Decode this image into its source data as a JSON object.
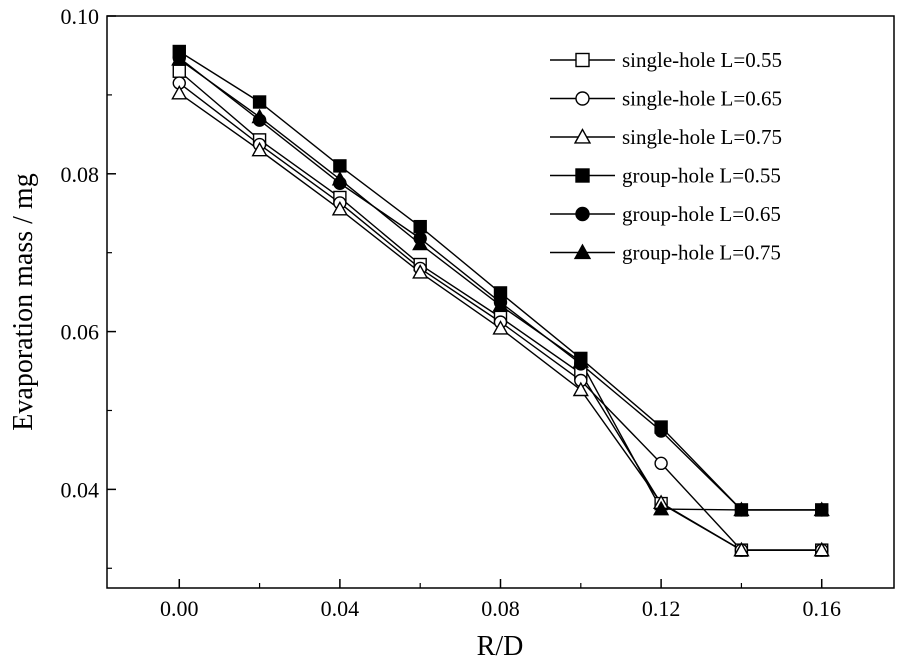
{
  "chart_data": {
    "type": "line",
    "title": "",
    "xlabel": "R/D",
    "ylabel": "Evaporation mass / mg",
    "xlim": [
      -0.018,
      0.178
    ],
    "ylim": [
      0.0275,
      0.1
    ],
    "x_ticks": [
      "0.00",
      "0.04",
      "0.08",
      "0.12",
      "0.16"
    ],
    "y_ticks": [
      "0.04",
      "0.06",
      "0.08",
      "0.10"
    ],
    "legend_position": "top-right",
    "x": [
      0.0,
      0.02,
      0.04,
      0.06,
      0.08,
      0.1,
      0.12,
      0.14,
      0.16
    ],
    "series": [
      {
        "name": "single-hole L=0.55",
        "marker": "square",
        "filled": false,
        "values": [
          0.093,
          0.0843,
          0.077,
          0.0685,
          0.0618,
          0.0547,
          0.0382,
          0.0323,
          0.0323
        ]
      },
      {
        "name": "single-hole L=0.65",
        "marker": "circle",
        "filled": false,
        "values": [
          0.0915,
          0.0837,
          0.0763,
          0.068,
          0.0612,
          0.0538,
          0.0433,
          0.0323,
          0.0323
        ]
      },
      {
        "name": "single-hole L=0.75",
        "marker": "triangle",
        "filled": false,
        "values": [
          0.0902,
          0.083,
          0.0755,
          0.0675,
          0.0604,
          0.0526,
          0.0383,
          0.0323,
          0.0323
        ]
      },
      {
        "name": "group-hole L=0.55",
        "marker": "square",
        "filled": true,
        "values": [
          0.0955,
          0.0891,
          0.081,
          0.0733,
          0.0649,
          0.0566,
          0.0479,
          0.0374,
          0.0374
        ]
      },
      {
        "name": "group-hole L=0.65",
        "marker": "circle",
        "filled": true,
        "values": [
          0.0947,
          0.0868,
          0.0788,
          0.0718,
          0.0637,
          0.0559,
          0.0474,
          0.0374,
          0.0374
        ]
      },
      {
        "name": "group-hole L=0.75",
        "marker": "triangle",
        "filled": true,
        "values": [
          0.0945,
          0.0872,
          0.0793,
          0.0711,
          0.0633,
          0.0562,
          0.0375,
          0.0374,
          0.0374
        ]
      }
    ]
  }
}
